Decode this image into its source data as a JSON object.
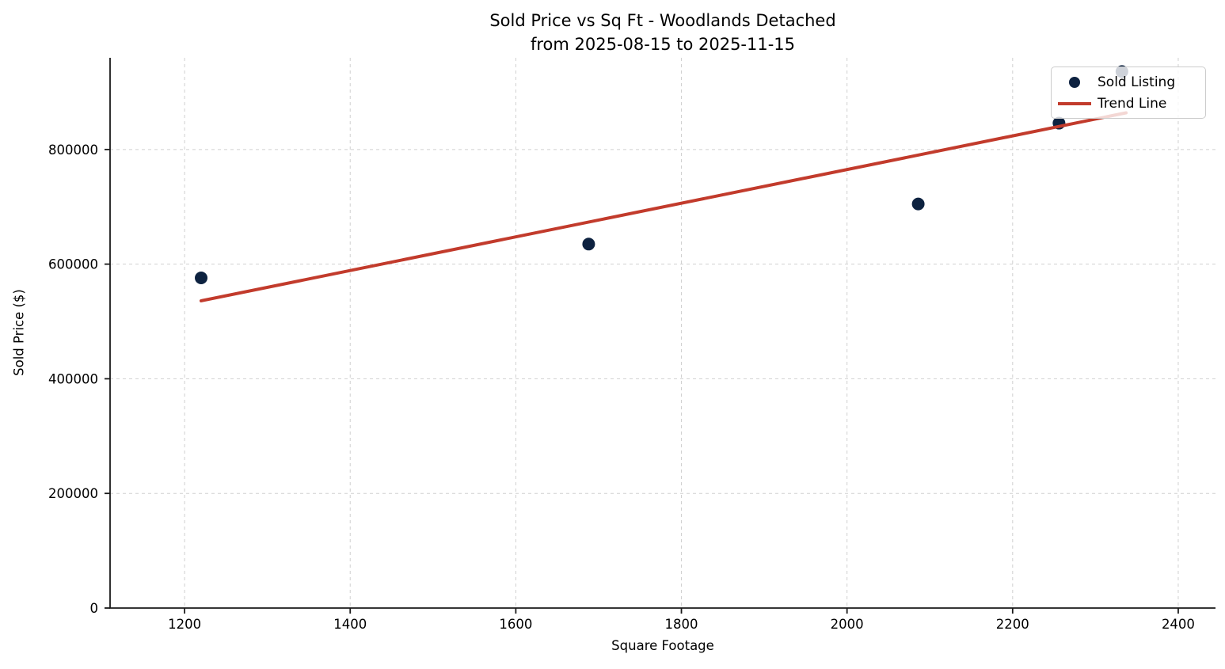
{
  "chart_data": {
    "type": "scatter",
    "title": "Sold Price vs Sq Ft - Woodlands Detached",
    "subtitle": "from 2025-08-15 to 2025-11-15",
    "xlabel": "Square Footage",
    "ylabel": "Sold Price ($)",
    "xlim": [
      1110,
      2445
    ],
    "ylim": [
      0,
      960000
    ],
    "xticks": [
      1200,
      1400,
      1600,
      1800,
      2000,
      2200,
      2400
    ],
    "yticks": [
      0,
      200000,
      400000,
      600000,
      800000
    ],
    "grid": true,
    "legend_position": "upper right",
    "series": [
      {
        "name": "Sold Listing",
        "kind": "scatter",
        "color": "#0d2240",
        "points": [
          {
            "sqft": 1220,
            "price": 576000
          },
          {
            "sqft": 1688,
            "price": 635000
          },
          {
            "sqft": 2086,
            "price": 705000
          },
          {
            "sqft": 2256,
            "price": 846000
          },
          {
            "sqft": 2332,
            "price": 936000
          }
        ]
      },
      {
        "name": "Trend Line",
        "kind": "line",
        "color": "#c23b2c",
        "points": [
          {
            "sqft": 1220,
            "price": 536000
          },
          {
            "sqft": 2337,
            "price": 864000
          }
        ]
      }
    ],
    "colors": {
      "scatter": "#0d2240",
      "trend": "#c23b2c",
      "grid": "#d0d0d0",
      "spine": "#1a1a1a",
      "text": "#000000",
      "legend_border": "#cccccc"
    }
  }
}
